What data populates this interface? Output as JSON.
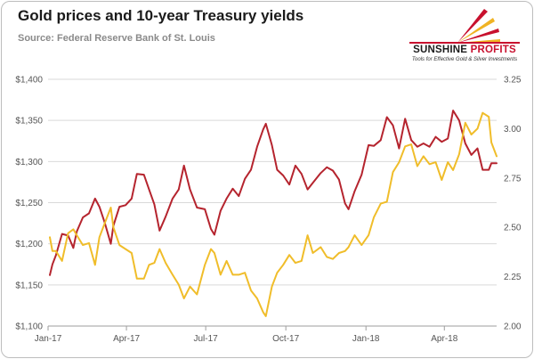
{
  "header": {
    "title": "Gold prices and 10-year Treasury yields",
    "source": "Source: Federal Reserve Bank of St. Louis"
  },
  "logo": {
    "name_part1": "SUNSHINE",
    "name_part2": "PROFITS",
    "tagline": "Tools for Effective Gold & Silver Investments",
    "icon": "sun-rays-icon",
    "colors": {
      "red": "#c8102e",
      "gold": "#f0b323"
    }
  },
  "chart_data": {
    "type": "line",
    "title": "Gold prices and 10-year Treasury yields",
    "x_type": "date",
    "x_range": [
      "2017-01-01",
      "2018-05-31"
    ],
    "x_ticks": [
      {
        "label": "Jan-17",
        "date": "2017-01-01"
      },
      {
        "label": "Apr-17",
        "date": "2017-04-01"
      },
      {
        "label": "Jul-17",
        "date": "2017-07-01"
      },
      {
        "label": "Oct-17",
        "date": "2017-10-01"
      },
      {
        "label": "Jan-18",
        "date": "2018-01-01"
      },
      {
        "label": "Apr-18",
        "date": "2018-04-01"
      }
    ],
    "y_left": {
      "range": [
        1100,
        1400
      ],
      "ticks": [
        {
          "label": "$1,100",
          "value": 1100
        },
        {
          "label": "$1,150",
          "value": 1150
        },
        {
          "label": "$1,200",
          "value": 1200
        },
        {
          "label": "$1,250",
          "value": 1250
        },
        {
          "label": "$1,300",
          "value": 1300
        },
        {
          "label": "$1,350",
          "value": 1350
        },
        {
          "label": "$1,400",
          "value": 1400
        }
      ]
    },
    "y_right": {
      "range": [
        2.0,
        3.25
      ],
      "ticks": [
        {
          "label": "2.00",
          "value": 2.0
        },
        {
          "label": "2.25",
          "value": 2.25
        },
        {
          "label": "2.50",
          "value": 2.5
        },
        {
          "label": "2.75",
          "value": 2.75
        },
        {
          "label": "3.00",
          "value": 3.0
        },
        {
          "label": "3.25",
          "value": 3.25
        }
      ]
    },
    "grid": true,
    "legend": "none",
    "series": [
      {
        "axis": "left",
        "color": "#b5242e",
        "points": [
          [
            "2017-01-03",
            1162
          ],
          [
            "2017-01-06",
            1175
          ],
          [
            "2017-01-10",
            1186
          ],
          [
            "2017-01-17",
            1212
          ],
          [
            "2017-01-24",
            1210
          ],
          [
            "2017-01-30",
            1195
          ],
          [
            "2017-02-03",
            1215
          ],
          [
            "2017-02-10",
            1232
          ],
          [
            "2017-02-17",
            1237
          ],
          [
            "2017-02-24",
            1255
          ],
          [
            "2017-03-01",
            1245
          ],
          [
            "2017-03-07",
            1226
          ],
          [
            "2017-03-14",
            1200
          ],
          [
            "2017-03-17",
            1222
          ],
          [
            "2017-03-24",
            1245
          ],
          [
            "2017-03-31",
            1247
          ],
          [
            "2017-04-07",
            1255
          ],
          [
            "2017-04-13",
            1285
          ],
          [
            "2017-04-21",
            1284
          ],
          [
            "2017-04-27",
            1266
          ],
          [
            "2017-05-03",
            1248
          ],
          [
            "2017-05-09",
            1216
          ],
          [
            "2017-05-16",
            1233
          ],
          [
            "2017-05-24",
            1255
          ],
          [
            "2017-05-31",
            1266
          ],
          [
            "2017-06-06",
            1295
          ],
          [
            "2017-06-13",
            1266
          ],
          [
            "2017-06-21",
            1244
          ],
          [
            "2017-06-30",
            1242
          ],
          [
            "2017-07-07",
            1218
          ],
          [
            "2017-07-11",
            1211
          ],
          [
            "2017-07-18",
            1240
          ],
          [
            "2017-07-25",
            1255
          ],
          [
            "2017-08-01",
            1267
          ],
          [
            "2017-08-08",
            1258
          ],
          [
            "2017-08-15",
            1279
          ],
          [
            "2017-08-22",
            1290
          ],
          [
            "2017-08-29",
            1318
          ],
          [
            "2017-09-05",
            1339
          ],
          [
            "2017-09-08",
            1346
          ],
          [
            "2017-09-15",
            1320
          ],
          [
            "2017-09-21",
            1290
          ],
          [
            "2017-09-28",
            1283
          ],
          [
            "2017-10-05",
            1272
          ],
          [
            "2017-10-12",
            1295
          ],
          [
            "2017-10-19",
            1285
          ],
          [
            "2017-10-26",
            1266
          ],
          [
            "2017-11-01",
            1274
          ],
          [
            "2017-11-10",
            1286
          ],
          [
            "2017-11-17",
            1293
          ],
          [
            "2017-11-24",
            1289
          ],
          [
            "2017-12-01",
            1278
          ],
          [
            "2017-12-08",
            1249
          ],
          [
            "2017-12-12",
            1242
          ],
          [
            "2017-12-19",
            1264
          ],
          [
            "2017-12-27",
            1284
          ],
          [
            "2018-01-04",
            1320
          ],
          [
            "2018-01-10",
            1319
          ],
          [
            "2018-01-18",
            1326
          ],
          [
            "2018-01-25",
            1354
          ],
          [
            "2018-02-01",
            1344
          ],
          [
            "2018-02-08",
            1316
          ],
          [
            "2018-02-15",
            1352
          ],
          [
            "2018-02-22",
            1326
          ],
          [
            "2018-03-01",
            1318
          ],
          [
            "2018-03-08",
            1322
          ],
          [
            "2018-03-15",
            1318
          ],
          [
            "2018-03-22",
            1330
          ],
          [
            "2018-03-29",
            1324
          ],
          [
            "2018-04-05",
            1328
          ],
          [
            "2018-04-11",
            1362
          ],
          [
            "2018-04-18",
            1350
          ],
          [
            "2018-04-25",
            1322
          ],
          [
            "2018-05-02",
            1308
          ],
          [
            "2018-05-09",
            1316
          ],
          [
            "2018-05-15",
            1290
          ],
          [
            "2018-05-22",
            1290
          ],
          [
            "2018-05-25",
            1298
          ],
          [
            "2018-05-31",
            1298
          ]
        ]
      },
      {
        "axis": "right",
        "color": "#f0bd2a",
        "points": [
          [
            "2017-01-03",
            2.45
          ],
          [
            "2017-01-06",
            2.38
          ],
          [
            "2017-01-10",
            2.38
          ],
          [
            "2017-01-17",
            2.33
          ],
          [
            "2017-01-24",
            2.47
          ],
          [
            "2017-01-30",
            2.49
          ],
          [
            "2017-02-03",
            2.46
          ],
          [
            "2017-02-10",
            2.41
          ],
          [
            "2017-02-17",
            2.42
          ],
          [
            "2017-02-24",
            2.31
          ],
          [
            "2017-03-01",
            2.45
          ],
          [
            "2017-03-07",
            2.52
          ],
          [
            "2017-03-14",
            2.6
          ],
          [
            "2017-03-17",
            2.5
          ],
          [
            "2017-03-24",
            2.41
          ],
          [
            "2017-03-31",
            2.39
          ],
          [
            "2017-04-07",
            2.37
          ],
          [
            "2017-04-13",
            2.24
          ],
          [
            "2017-04-21",
            2.24
          ],
          [
            "2017-04-27",
            2.31
          ],
          [
            "2017-05-03",
            2.32
          ],
          [
            "2017-05-09",
            2.39
          ],
          [
            "2017-05-16",
            2.32
          ],
          [
            "2017-05-24",
            2.26
          ],
          [
            "2017-05-31",
            2.21
          ],
          [
            "2017-06-06",
            2.14
          ],
          [
            "2017-06-13",
            2.2
          ],
          [
            "2017-06-21",
            2.16
          ],
          [
            "2017-06-30",
            2.31
          ],
          [
            "2017-07-07",
            2.39
          ],
          [
            "2017-07-11",
            2.37
          ],
          [
            "2017-07-18",
            2.26
          ],
          [
            "2017-07-25",
            2.33
          ],
          [
            "2017-08-01",
            2.26
          ],
          [
            "2017-08-08",
            2.26
          ],
          [
            "2017-08-15",
            2.27
          ],
          [
            "2017-08-22",
            2.18
          ],
          [
            "2017-08-29",
            2.14
          ],
          [
            "2017-09-05",
            2.07
          ],
          [
            "2017-09-08",
            2.05
          ],
          [
            "2017-09-15",
            2.2
          ],
          [
            "2017-09-21",
            2.27
          ],
          [
            "2017-09-28",
            2.31
          ],
          [
            "2017-10-05",
            2.36
          ],
          [
            "2017-10-12",
            2.32
          ],
          [
            "2017-10-19",
            2.33
          ],
          [
            "2017-10-26",
            2.46
          ],
          [
            "2017-11-01",
            2.37
          ],
          [
            "2017-11-10",
            2.4
          ],
          [
            "2017-11-17",
            2.35
          ],
          [
            "2017-11-24",
            2.34
          ],
          [
            "2017-12-01",
            2.37
          ],
          [
            "2017-12-08",
            2.38
          ],
          [
            "2017-12-12",
            2.4
          ],
          [
            "2017-12-19",
            2.46
          ],
          [
            "2017-12-27",
            2.41
          ],
          [
            "2018-01-04",
            2.46
          ],
          [
            "2018-01-10",
            2.55
          ],
          [
            "2018-01-18",
            2.62
          ],
          [
            "2018-01-25",
            2.63
          ],
          [
            "2018-02-01",
            2.78
          ],
          [
            "2018-02-08",
            2.83
          ],
          [
            "2018-02-15",
            2.91
          ],
          [
            "2018-02-22",
            2.92
          ],
          [
            "2018-03-01",
            2.81
          ],
          [
            "2018-03-08",
            2.86
          ],
          [
            "2018-03-15",
            2.82
          ],
          [
            "2018-03-22",
            2.83
          ],
          [
            "2018-03-29",
            2.74
          ],
          [
            "2018-04-05",
            2.83
          ],
          [
            "2018-04-11",
            2.79
          ],
          [
            "2018-04-18",
            2.87
          ],
          [
            "2018-04-25",
            3.03
          ],
          [
            "2018-05-02",
            2.97
          ],
          [
            "2018-05-09",
            3.0
          ],
          [
            "2018-05-15",
            3.08
          ],
          [
            "2018-05-22",
            3.06
          ],
          [
            "2018-05-25",
            2.93
          ],
          [
            "2018-05-31",
            2.86
          ]
        ]
      }
    ]
  }
}
